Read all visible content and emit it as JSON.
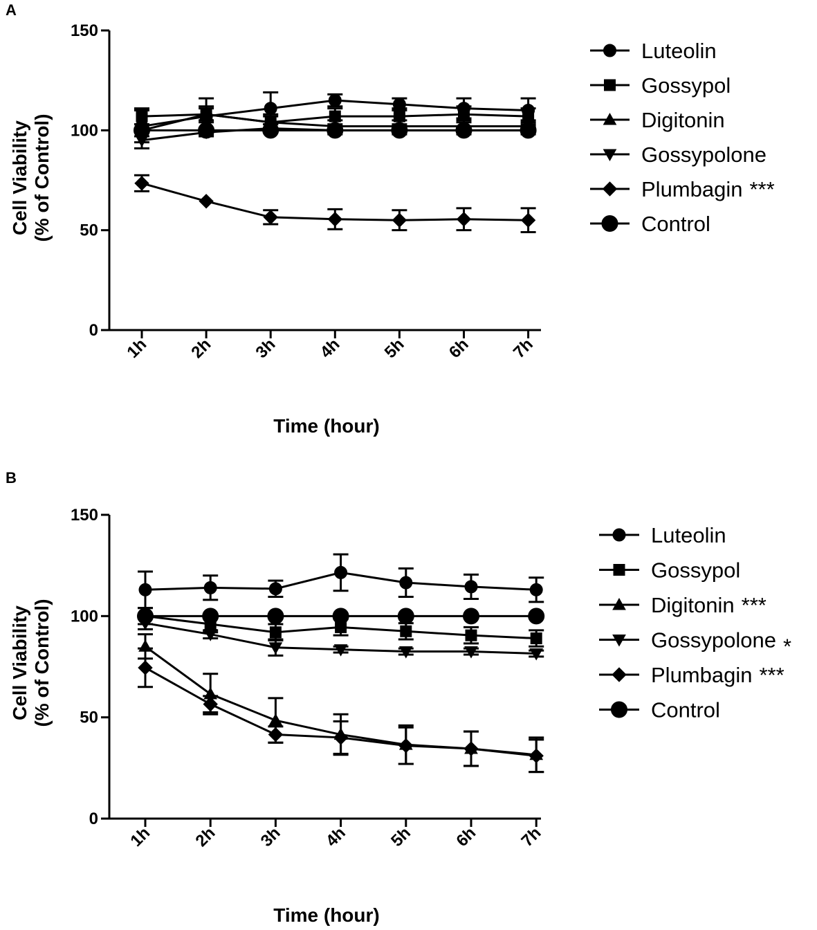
{
  "chart_data": [
    {
      "panel": "A",
      "type": "line",
      "xlabel": "Time (hour)",
      "ylabel": [
        "Cell Viability",
        "(% of Control)"
      ],
      "ylim": [
        0,
        150
      ],
      "yticks": [
        0,
        50,
        100,
        150
      ],
      "categories": [
        "1h",
        "2h",
        "3h",
        "4h",
        "5h",
        "6h",
        "7h"
      ],
      "series": [
        {
          "name": "Luteolin",
          "annotation": "",
          "marker": "circle-small",
          "values": [
            102,
            107,
            111,
            115,
            113,
            111,
            110
          ],
          "errors": [
            8,
            9,
            8,
            3,
            3,
            5,
            6
          ]
        },
        {
          "name": "Gossypol",
          "annotation": "",
          "marker": "square",
          "values": [
            107,
            108,
            104,
            107,
            107,
            108,
            107
          ],
          "errors": [
            4,
            4,
            4,
            4,
            4,
            4,
            4
          ]
        },
        {
          "name": "Digitonin",
          "annotation": "",
          "marker": "triangle-up",
          "values": [
            100,
            108,
            104,
            102,
            102,
            102,
            102
          ],
          "errors": [
            3,
            3,
            3,
            3,
            3,
            3,
            3
          ]
        },
        {
          "name": "Gossypolone",
          "annotation": "",
          "marker": "triangle-down",
          "values": [
            95,
            99,
            101,
            100,
            100,
            100,
            100
          ],
          "errors": [
            4,
            2,
            2,
            2,
            2,
            2,
            2
          ]
        },
        {
          "name": "Plumbagin",
          "annotation": "***",
          "marker": "diamond",
          "values": [
            73.5,
            64.5,
            56.5,
            55.5,
            55,
            55.5,
            55
          ],
          "errors": [
            4,
            0,
            3.5,
            5,
            5,
            5.5,
            6
          ]
        },
        {
          "name": "Control",
          "annotation": "",
          "marker": "circle-large",
          "values": [
            100,
            100,
            100,
            100,
            100,
            100,
            100
          ],
          "errors": [
            0,
            0,
            0,
            0,
            0,
            0,
            0
          ]
        }
      ]
    },
    {
      "panel": "B",
      "type": "line",
      "xlabel": "Time (hour)",
      "ylabel": [
        "Cell Viability",
        "(% of Control)"
      ],
      "ylim": [
        0,
        150
      ],
      "yticks": [
        0,
        50,
        100,
        150
      ],
      "categories": [
        "1h",
        "2h",
        "3h",
        "4h",
        "5h",
        "6h",
        "7h"
      ],
      "series": [
        {
          "name": "Luteolin",
          "annotation": "",
          "marker": "circle-small",
          "values": [
            113,
            114,
            113.5,
            121.5,
            116.5,
            114.5,
            113
          ],
          "errors": [
            9,
            6,
            4,
            9,
            7,
            6,
            6
          ]
        },
        {
          "name": "Gossypol",
          "annotation": "",
          "marker": "square",
          "values": [
            100,
            96,
            92,
            94.5,
            92.5,
            90.5,
            89
          ],
          "errors": [
            4,
            4,
            4,
            4,
            4,
            4,
            4
          ]
        },
        {
          "name": "Digitonin",
          "annotation": "***",
          "marker": "triangle-up",
          "values": [
            85,
            61.5,
            48.5,
            41.5,
            36.5,
            34.5,
            31.5
          ],
          "errors": [
            6,
            10,
            11,
            10,
            9.5,
            8.5,
            8.5
          ]
        },
        {
          "name": "Gossypolone",
          "annotation": "*",
          "marker": "triangle-down",
          "values": [
            96.5,
            91,
            84.5,
            83.5,
            82.5,
            82.5,
            81.5
          ],
          "errors": [
            3,
            2,
            4,
            1.5,
            1.5,
            1.5,
            1.5
          ]
        },
        {
          "name": "Plumbagin",
          "annotation": "***",
          "marker": "diamond",
          "values": [
            74.5,
            56.5,
            41.5,
            40,
            36,
            34.5,
            31
          ],
          "errors": [
            9.5,
            4,
            4,
            8,
            9,
            8.5,
            8
          ]
        },
        {
          "name": "Control",
          "annotation": "",
          "marker": "circle-large",
          "values": [
            100,
            100,
            100,
            100,
            100,
            100,
            100
          ],
          "errors": [
            0,
            0,
            0,
            0,
            0,
            0,
            0
          ]
        }
      ]
    }
  ]
}
